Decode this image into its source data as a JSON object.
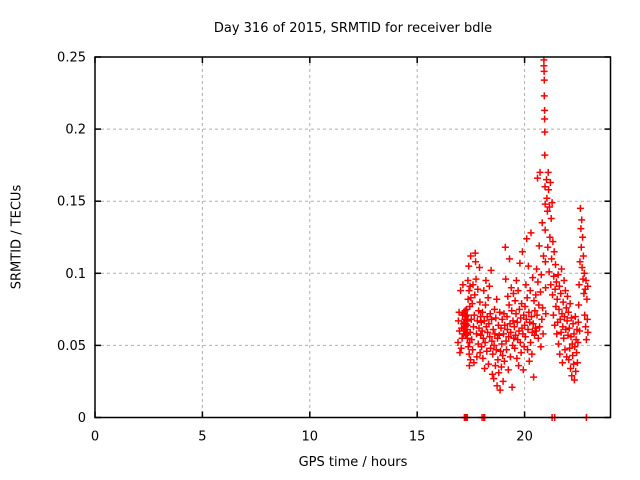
{
  "chart_data": {
    "type": "scatter",
    "title": "Day 316 of 2015, SRMTID for receiver bdle",
    "xlabel": "GPS time / hours",
    "ylabel": "SRMTID / TECUs",
    "xlim": [
      0,
      24
    ],
    "ylim": [
      0,
      0.25
    ],
    "xticks": [
      0,
      5,
      10,
      15,
      20
    ],
    "xtick_labels": [
      "0",
      "5",
      "10",
      "15",
      "20"
    ],
    "yticks": [
      0,
      0.05,
      0.1,
      0.15,
      0.2,
      0.25
    ],
    "ytick_labels": [
      "0",
      "0.05",
      "0.1",
      "0.15",
      "0.2",
      "0.25"
    ],
    "grid": true,
    "legend": false,
    "marker": "plus",
    "marker_color": "#ff0000",
    "grid_color": "#b0b0b0",
    "border_color": "#000000",
    "series_name": "SRMTID",
    "points": [
      [
        16.9,
        0.052
      ],
      [
        16.92,
        0.067
      ],
      [
        16.95,
        0.073
      ],
      [
        16.97,
        0.06
      ],
      [
        16.99,
        0.045
      ],
      [
        17.02,
        0.088
      ],
      [
        17.05,
        0.048
      ],
      [
        17.07,
        0.062
      ],
      [
        17.09,
        0.055
      ],
      [
        17.11,
        0.071
      ],
      [
        17.13,
        0.092
      ],
      [
        17.15,
        0.065
      ],
      [
        17.16,
        0.058
      ],
      [
        17.18,
        0.072
      ],
      [
        17.2,
        0.066
      ],
      [
        17.21,
        0.06
      ],
      [
        17.22,
        0.068
      ],
      [
        17.23,
        0.074
      ],
      [
        17.24,
        0.063
      ],
      [
        17.25,
        0.057
      ],
      [
        17.26,
        0.07
      ],
      [
        17.27,
        0.065
      ],
      [
        17.28,
        0.061
      ],
      [
        17.29,
        0.075
      ],
      [
        17.3,
        0.068
      ],
      [
        17.31,
        0.058
      ],
      [
        17.32,
        0.064
      ],
      [
        17.33,
        0.071
      ],
      [
        17.34,
        0.055
      ],
      [
        17.35,
        0.067
      ],
      [
        17.36,
        0.095
      ],
      [
        17.37,
        0.082
      ],
      [
        17.38,
        0.049
      ],
      [
        17.4,
        0.105
      ],
      [
        17.41,
        0.088
      ],
      [
        17.42,
        0.044
      ],
      [
        17.43,
        0.036
      ],
      [
        17.44,
        0.052
      ],
      [
        17.45,
        0.077
      ],
      [
        17.46,
        0.091
      ],
      [
        17.47,
        0.059
      ],
      [
        17.48,
        0.04
      ],
      [
        17.49,
        0.112
      ],
      [
        17.5,
        0.083
      ],
      [
        17.2,
        0
      ],
      [
        17.23,
        0
      ],
      [
        17.26,
        0
      ],
      [
        17.3,
        0
      ],
      [
        17.33,
        0
      ],
      [
        17.52,
        0.068
      ],
      [
        17.54,
        0.054
      ],
      [
        17.56,
        0.079
      ],
      [
        17.58,
        0.047
      ],
      [
        17.6,
        0.092
      ],
      [
        17.62,
        0.063
      ],
      [
        17.64,
        0.038
      ],
      [
        17.66,
        0.071
      ],
      [
        17.68,
        0.085
      ],
      [
        17.7,
        0.114
      ],
      [
        17.72,
        0.108
      ],
      [
        17.74,
        0.096
      ],
      [
        17.76,
        0.058
      ],
      [
        17.78,
        0.042
      ],
      [
        17.8,
        0.067
      ],
      [
        17.82,
        0.089
      ],
      [
        17.84,
        0.051
      ],
      [
        17.86,
        0.074
      ],
      [
        17.88,
        0.062
      ],
      [
        17.9,
        0.104
      ],
      [
        17.92,
        0.08
      ],
      [
        17.93,
        0.045
      ],
      [
        17.95,
        0.07
      ],
      [
        17.96,
        0.057
      ],
      [
        17.98,
        0.066
      ],
      [
        18.0,
        0.049
      ],
      [
        18.02,
        0
      ],
      [
        18.1,
        0
      ],
      [
        18.14,
        0
      ],
      [
        18.02,
        0.06
      ],
      [
        18.04,
        0.073
      ],
      [
        18.06,
        0.041
      ],
      [
        18.08,
        0.055
      ],
      [
        18.1,
        0.088
      ],
      [
        18.12,
        0.067
      ],
      [
        18.14,
        0.034
      ],
      [
        18.16,
        0.052
      ],
      [
        18.18,
        0.078
      ],
      [
        18.2,
        0.095
      ],
      [
        18.22,
        0.063
      ],
      [
        18.24,
        0.046
      ],
      [
        18.26,
        0.07
      ],
      [
        18.28,
        0.059
      ],
      [
        18.3,
        0.083
      ],
      [
        18.32,
        0.037
      ],
      [
        18.34,
        0.065
      ],
      [
        18.36,
        0.091
      ],
      [
        18.38,
        0.056
      ],
      [
        18.4,
        0.072
      ],
      [
        18.42,
        0.048
      ],
      [
        18.44,
        0.102
      ],
      [
        18.46,
        0.068
      ],
      [
        18.48,
        0.053
      ],
      [
        18.5,
        0.03
      ],
      [
        18.52,
        0.044
      ],
      [
        18.54,
        0.061
      ],
      [
        18.56,
        0.027
      ],
      [
        18.58,
        0.05
      ],
      [
        18.6,
        0.075
      ],
      [
        18.62,
        0.058
      ],
      [
        18.64,
        0.036
      ],
      [
        18.66,
        0.069
      ],
      [
        18.68,
        0.047
      ],
      [
        18.7,
        0.082
      ],
      [
        18.72,
        0.022
      ],
      [
        18.74,
        0.055
      ],
      [
        18.76,
        0.04
      ],
      [
        18.78,
        0.064
      ],
      [
        18.8,
        0.031
      ],
      [
        18.82,
        0.057
      ],
      [
        18.84,
        0.073
      ],
      [
        18.86,
        0.019
      ],
      [
        18.88,
        0.046
      ],
      [
        18.9,
        0.062
      ],
      [
        18.92,
        0.035
      ],
      [
        18.94,
        0.051
      ],
      [
        18.96,
        0.068
      ],
      [
        18.98,
        0.043
      ],
      [
        19.0,
        0.025
      ],
      [
        19.02,
        0.058
      ],
      [
        19.04,
        0.072
      ],
      [
        19.06,
        0.039
      ],
      [
        19.08,
        0.064
      ],
      [
        19.1,
        0.118
      ],
      [
        19.12,
        0.096
      ],
      [
        19.14,
        0.053
      ],
      [
        19.16,
        0.047
      ],
      [
        19.18,
        0.07
      ],
      [
        19.2,
        0.061
      ],
      [
        19.22,
        0.084
      ],
      [
        19.24,
        0.033
      ],
      [
        19.26,
        0.056
      ],
      [
        19.28,
        0.078
      ],
      [
        19.3,
        0.11
      ],
      [
        19.32,
        0.065
      ],
      [
        19.34,
        0.042
      ],
      [
        19.36,
        0.059
      ],
      [
        19.38,
        0.09
      ],
      [
        19.4,
        0.074
      ],
      [
        19.42,
        0.021
      ],
      [
        19.44,
        0.05
      ],
      [
        19.46,
        0.067
      ],
      [
        19.48,
        0.086
      ],
      [
        19.5,
        0.055
      ],
      [
        19.52,
        0.063
      ],
      [
        19.54,
        0.048
      ],
      [
        19.56,
        0.081
      ],
      [
        19.58,
        0.057
      ],
      [
        19.6,
        0.072
      ],
      [
        19.62,
        0.095
      ],
      [
        19.64,
        0.041
      ],
      [
        19.66,
        0.066
      ],
      [
        19.68,
        0.054
      ],
      [
        19.7,
        0.088
      ],
      [
        19.72,
        0.036
      ],
      [
        19.74,
        0.06
      ],
      [
        19.76,
        0.075
      ],
      [
        19.78,
        0.107
      ],
      [
        19.8,
        0.052
      ],
      [
        19.82,
        0.069
      ],
      [
        19.84,
        0.045
      ],
      [
        19.86,
        0.079
      ],
      [
        19.88,
        0.062
      ],
      [
        19.9,
        0.115
      ],
      [
        19.92,
        0.058
      ],
      [
        19.94,
        0.033
      ],
      [
        19.96,
        0.071
      ],
      [
        19.98,
        0.049
      ],
      [
        20.0,
        0.064
      ],
      [
        20.02,
        0.077
      ],
      [
        20.04,
        0.056
      ],
      [
        20.06,
        0.092
      ],
      [
        20.08,
        0.068
      ],
      [
        20.1,
        0.124
      ],
      [
        20.12,
        0.083
      ],
      [
        20.14,
        0.047
      ],
      [
        20.16,
        0.061
      ],
      [
        20.18,
        0.105
      ],
      [
        20.2,
        0.073
      ],
      [
        20.22,
        0.039
      ],
      [
        20.24,
        0.066
      ],
      [
        20.26,
        0.088
      ],
      [
        20.28,
        0.052
      ],
      [
        20.3,
        0.128
      ],
      [
        20.32,
        0.07
      ],
      [
        20.34,
        0.044
      ],
      [
        20.36,
        0.059
      ],
      [
        20.38,
        0.097
      ],
      [
        20.4,
        0.065
      ],
      [
        20.42,
        0.028
      ],
      [
        20.44,
        0.081
      ],
      [
        20.46,
        0.057
      ],
      [
        20.48,
        0.074
      ],
      [
        20.5,
        0.062
      ],
      [
        20.52,
        0.085
      ],
      [
        20.54,
        0.06
      ],
      [
        20.56,
        0.103
      ],
      [
        20.58,
        0.071
      ],
      [
        20.6,
        0.166
      ],
      [
        20.62,
        0.094
      ],
      [
        20.64,
        0.055
      ],
      [
        20.66,
        0.078
      ],
      [
        20.68,
        0.119
      ],
      [
        20.7,
        0.063
      ],
      [
        20.72,
        0.17
      ],
      [
        20.74,
        0.087
      ],
      [
        20.76,
        0.049
      ],
      [
        20.78,
        0.099
      ],
      [
        20.8,
        0.068
      ],
      [
        20.82,
        0.135
      ],
      [
        20.84,
        0.076
      ],
      [
        20.86,
        0.058
      ],
      [
        20.88,
        0.112
      ],
      [
        20.9,
        0.248
      ],
      [
        20.9,
        0.244
      ],
      [
        20.91,
        0.24
      ],
      [
        20.92,
        0.234
      ],
      [
        20.92,
        0.223
      ],
      [
        20.93,
        0.213
      ],
      [
        20.93,
        0.207
      ],
      [
        20.94,
        0.198
      ],
      [
        20.94,
        0.182
      ],
      [
        20.95,
        0.16
      ],
      [
        20.96,
        0.148
      ],
      [
        20.96,
        0.13
      ],
      [
        20.97,
        0.108
      ],
      [
        20.98,
        0.09
      ],
      [
        20.99,
        0.072
      ],
      [
        21.02,
        0.165
      ],
      [
        21.04,
        0.152
      ],
      [
        21.06,
        0.143
      ],
      [
        21.08,
        0.118
      ],
      [
        21.1,
        0.17
      ],
      [
        21.12,
        0.158
      ],
      [
        21.14,
        0.101
      ],
      [
        21.16,
        0.146
      ],
      [
        21.18,
        0.125
      ],
      [
        21.2,
        0.163
      ],
      [
        21.22,
        0.092
      ],
      [
        21.24,
        0.138
      ],
      [
        21.26,
        0.11
      ],
      [
        21.28,
        0.149
      ],
      [
        21.3,
        0.085
      ],
      [
        21.32,
        0.122
      ],
      [
        21.34,
        0.071
      ],
      [
        21.36,
        0.098
      ],
      [
        21.38,
        0.115
      ],
      [
        21.4,
        0.064
      ],
      [
        21.42,
        0.089
      ],
      [
        21.44,
        0.106
      ],
      [
        21.46,
        0.077
      ],
      [
        21.48,
        0.094
      ],
      [
        21.5,
        0.058
      ],
      [
        21.28,
        0
      ],
      [
        21.4,
        0
      ],
      [
        21.52,
        0.082
      ],
      [
        21.54,
        0.066
      ],
      [
        21.56,
        0.099
      ],
      [
        21.58,
        0.051
      ],
      [
        21.6,
        0.075
      ],
      [
        21.62,
        0.091
      ],
      [
        21.64,
        0.044
      ],
      [
        21.66,
        0.068
      ],
      [
        21.68,
        0.086
      ],
      [
        21.7,
        0.059
      ],
      [
        21.72,
        0.103
      ],
      [
        21.74,
        0.072
      ],
      [
        21.76,
        0.038
      ],
      [
        21.78,
        0.063
      ],
      [
        21.8,
        0.08
      ],
      [
        21.82,
        0.055
      ],
      [
        21.84,
        0.095
      ],
      [
        21.86,
        0.07
      ],
      [
        21.88,
        0.047
      ],
      [
        21.9,
        0.088
      ],
      [
        21.92,
        0.061
      ],
      [
        21.94,
        0.076
      ],
      [
        21.96,
        0.042
      ],
      [
        21.98,
        0.067
      ],
      [
        22.0,
        0.084
      ],
      [
        22.02,
        0.057
      ],
      [
        22.04,
        0.073
      ],
      [
        22.06,
        0.04
      ],
      [
        22.08,
        0.062
      ],
      [
        22.1,
        0.048
      ],
      [
        22.12,
        0.079
      ],
      [
        22.14,
        0.034
      ],
      [
        22.16,
        0.056
      ],
      [
        22.18,
        0.069
      ],
      [
        22.2,
        0.029
      ],
      [
        22.22,
        0.051
      ],
      [
        22.24,
        0.043
      ],
      [
        22.26,
        0.065
      ],
      [
        22.28,
        0.037
      ],
      [
        22.3,
        0.058
      ],
      [
        22.32,
        0.026
      ],
      [
        22.34,
        0.049
      ],
      [
        22.36,
        0.07
      ],
      [
        22.38,
        0.032
      ],
      [
        22.4,
        0.054
      ],
      [
        22.42,
        0.045
      ],
      [
        22.44,
        0.061
      ],
      [
        22.46,
        0.038
      ],
      [
        22.48,
        0.052
      ],
      [
        22.5,
        0.066
      ],
      [
        22.52,
        0.078
      ],
      [
        22.54,
        0.092
      ],
      [
        22.56,
        0.06
      ],
      [
        22.58,
        0.108
      ],
      [
        22.6,
        0.145
      ],
      [
        22.62,
        0.131
      ],
      [
        22.64,
        0.118
      ],
      [
        22.66,
        0.137
      ],
      [
        22.68,
        0.104
      ],
      [
        22.7,
        0.125
      ],
      [
        22.72,
        0.096
      ],
      [
        22.74,
        0.112
      ],
      [
        22.76,
        0.086
      ],
      [
        22.78,
        0.1
      ],
      [
        22.8,
        0.071
      ],
      [
        22.82,
        0.089
      ],
      [
        22.84,
        0.063
      ],
      [
        22.86,
        0.095
      ],
      [
        22.88,
        0.054
      ],
      [
        22.9,
        0.082
      ],
      [
        22.92,
        0.068
      ],
      [
        22.94,
        0.091
      ],
      [
        22.95,
        0.059
      ],
      [
        22.88,
        0
      ]
    ]
  }
}
